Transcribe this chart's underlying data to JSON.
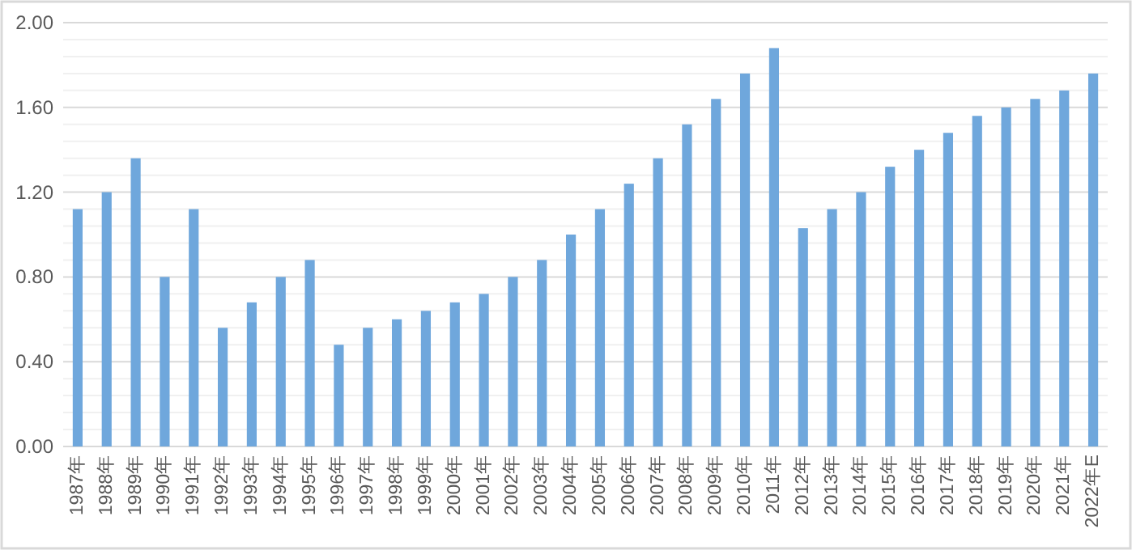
{
  "chart_data": {
    "type": "bar",
    "categories": [
      "1987年",
      "1988年",
      "1989年",
      "1990年",
      "1991年",
      "1992年",
      "1993年",
      "1994年",
      "1995年",
      "1996年",
      "1997年",
      "1998年",
      "1999年",
      "2000年",
      "2001年",
      "2002年",
      "2003年",
      "2004年",
      "2005年",
      "2006年",
      "2007年",
      "2008年",
      "2009年",
      "2010年",
      "2011年",
      "2012年",
      "2013年",
      "2014年",
      "2015年",
      "2016年",
      "2017年",
      "2018年",
      "2019年",
      "2020年",
      "2021年",
      "2022年E"
    ],
    "values": [
      1.12,
      1.2,
      1.36,
      0.8,
      1.12,
      0.56,
      0.68,
      0.8,
      0.88,
      0.48,
      0.56,
      0.6,
      0.64,
      0.68,
      0.72,
      0.8,
      0.88,
      1.0,
      1.12,
      1.24,
      1.36,
      1.52,
      1.64,
      1.76,
      1.88,
      1.03,
      1.12,
      1.2,
      1.32,
      1.4,
      1.48,
      1.56,
      1.6,
      1.64,
      1.68,
      1.76
    ],
    "color": "#6fa7dc",
    "ylim": [
      0,
      2
    ],
    "yticks": [
      {
        "value": 0,
        "label": "0.00"
      },
      {
        "value": 0.08,
        "label": null
      },
      {
        "value": 0.16,
        "label": null
      },
      {
        "value": 0.24,
        "label": null
      },
      {
        "value": 0.32,
        "label": null
      },
      {
        "value": 0.4,
        "label": "0.40"
      },
      {
        "value": 0.48,
        "label": null
      },
      {
        "value": 0.56,
        "label": null
      },
      {
        "value": 0.64,
        "label": null
      },
      {
        "value": 0.72,
        "label": null
      },
      {
        "value": 0.8,
        "label": "0.80"
      },
      {
        "value": 0.88,
        "label": null
      },
      {
        "value": 0.96,
        "label": null
      },
      {
        "value": 1.04,
        "label": null
      },
      {
        "value": 1.12,
        "label": null
      },
      {
        "value": 1.2,
        "label": "1.20"
      },
      {
        "value": 1.28,
        "label": null
      },
      {
        "value": 1.36,
        "label": null
      },
      {
        "value": 1.44,
        "label": null
      },
      {
        "value": 1.52,
        "label": null
      },
      {
        "value": 1.6,
        "label": "1.60"
      },
      {
        "value": 1.68,
        "label": null
      },
      {
        "value": 1.76,
        "label": null
      },
      {
        "value": 1.84,
        "label": null
      },
      {
        "value": 1.92,
        "label": null
      },
      {
        "value": 2,
        "label": "2.00"
      }
    ],
    "grid": "y"
  }
}
